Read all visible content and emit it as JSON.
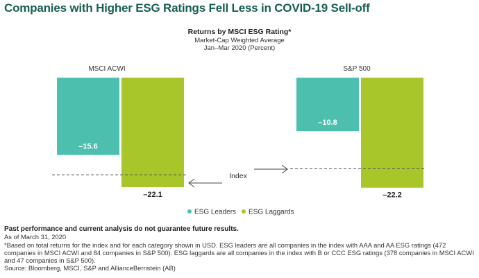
{
  "title": "Companies with Higher ESG Ratings Fell Less in COVID-19 Sell-off",
  "chart_data": {
    "type": "bar",
    "title": "Returns by MSCI ESG Rating*",
    "subtitle_lines": [
      "Market-Cap Weighted Average",
      "Jan–Mar 2020 (Percent)"
    ],
    "categories": [
      "MSCI ACWI",
      "S&P 500"
    ],
    "series": [
      {
        "name": "ESG Leaders",
        "color": "#4dbfae",
        "values": [
          -15.6,
          -10.8
        ],
        "labels": [
          "–15.6",
          "–10.8"
        ]
      },
      {
        "name": "ESG Laggards",
        "color": "#a8c52a",
        "values": [
          -22.1,
          -22.2
        ],
        "labels": [
          "–22.1",
          "–22.2"
        ]
      }
    ],
    "index_values": [
      -19.6,
      -18.4
    ],
    "index_label": "Index",
    "ylim": [
      -24,
      0
    ],
    "legend": "bottom-center"
  },
  "notes": {
    "disclaimer": "Past performance and current analysis do not guarantee future results.",
    "as_of": "As of March 31, 2020",
    "footnote": "*Based on total returns for the index and for each category shown in USD. ESG leaders are all companies in the index with AAA and AA ESG ratings (472 companies in MSCI ACWI and 84 companies in S&P 500). ESG laggards are all companies in the index with B or CCC ESG ratings (378 companies in MSCI ACWI and 47 companies in S&P 500).",
    "source": "Source: Bloomberg, MSCI, S&P and AllianceBernstein (AB)"
  }
}
